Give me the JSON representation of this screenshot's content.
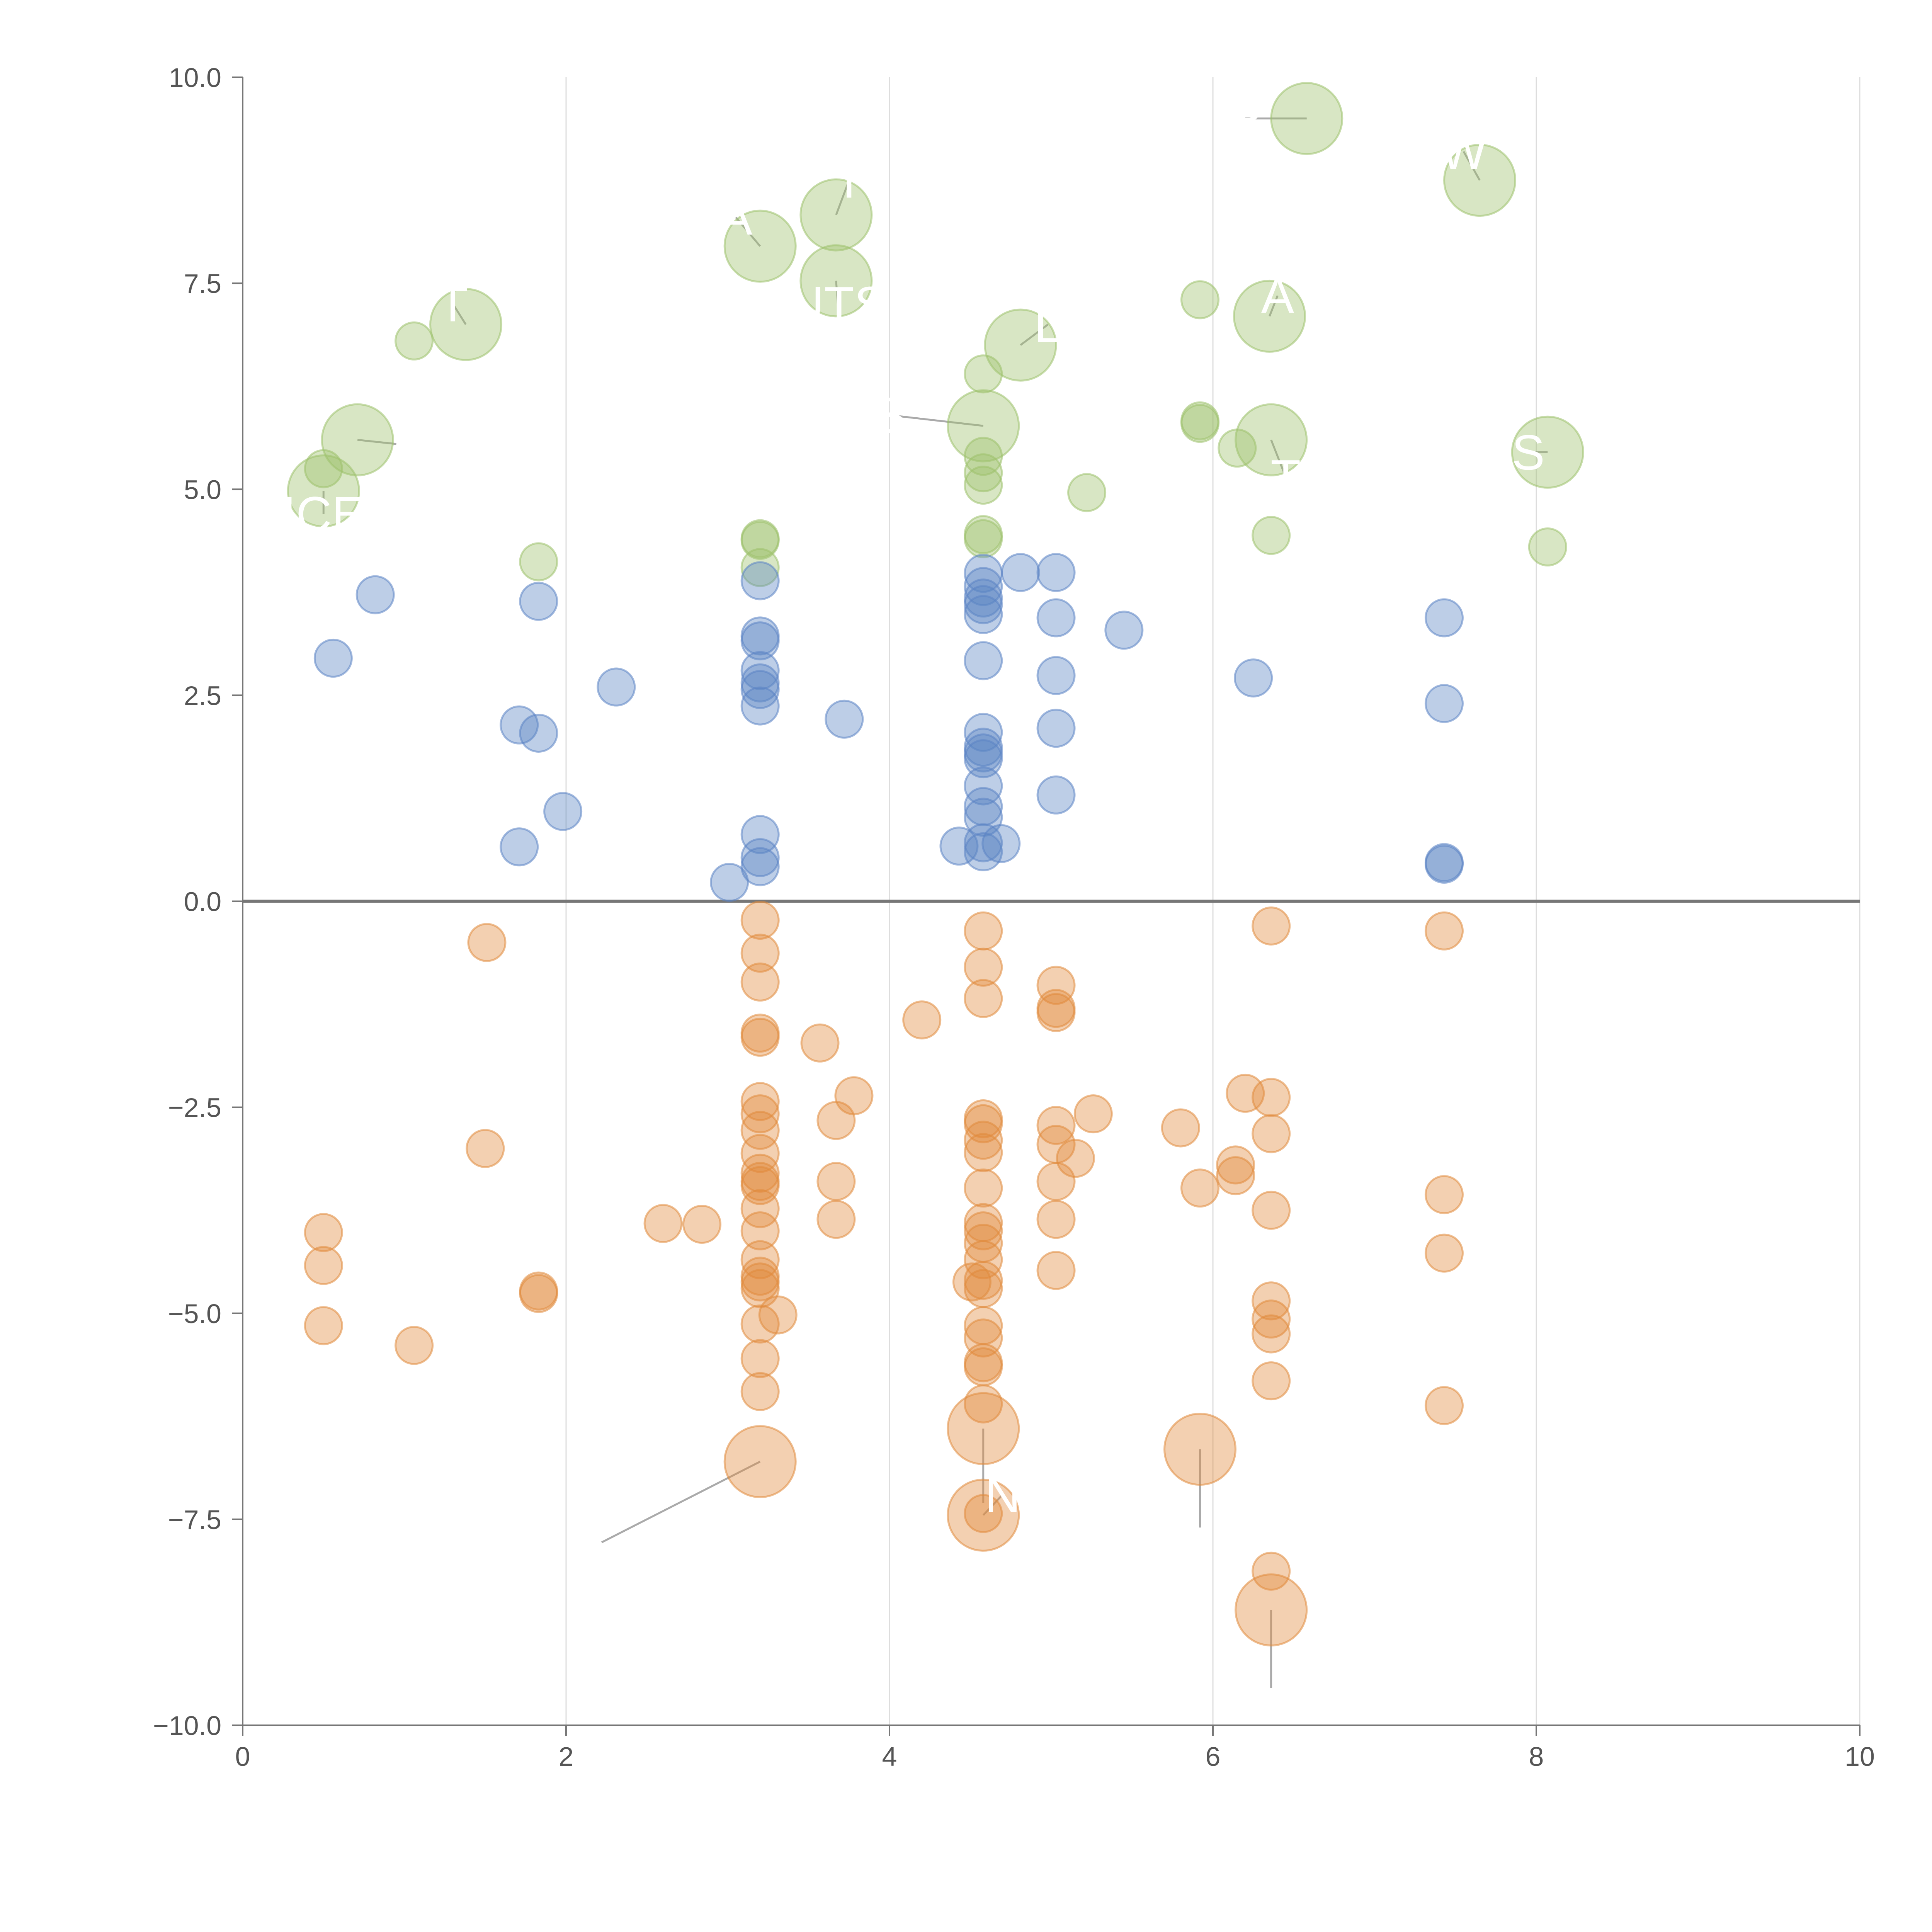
{
  "chart_data": {
    "type": "scatter",
    "title": "",
    "xlabel": "",
    "ylabel": "",
    "xlim": [
      0,
      10
    ],
    "ylim": [
      -10,
      10
    ],
    "x_ticks": [
      "0",
      "2",
      "4",
      "6",
      "8",
      "10"
    ],
    "y_ticks": [
      "10.0",
      "7.5",
      "5.0",
      "2.5",
      "0.0",
      "−2.5",
      "−5.0",
      "−7.5",
      "−10.0"
    ],
    "x_tick_values": [
      0,
      2,
      4,
      6,
      8,
      10
    ],
    "y_tick_values": [
      10,
      7.5,
      5,
      2.5,
      0,
      -2.5,
      -5,
      -7.5,
      -10
    ],
    "grid": "vertical",
    "zero_line": true,
    "legend": "none",
    "colors": {
      "green": "#9DC16B",
      "blue": "#5B84C4",
      "orange": "#E08A3C",
      "grid": "#dddddd",
      "axis": "#777777",
      "zero_line": "#777777",
      "leader": "#aaaaaa"
    },
    "series": [
      {
        "name": "green",
        "color": "#9DC16B",
        "points": [
          {
            "x": 0.5,
            "y": 5.25,
            "s": 1
          },
          {
            "x": 1.06,
            "y": 6.8,
            "s": 1
          },
          {
            "x": 1.83,
            "y": 4.12,
            "s": 1
          },
          {
            "x": 3.2,
            "y": 4.4,
            "s": 1
          },
          {
            "x": 3.2,
            "y": 4.05,
            "s": 1
          },
          {
            "x": 3.2,
            "y": 4.38,
            "s": 1
          },
          {
            "x": 4.58,
            "y": 6.4,
            "s": 1
          },
          {
            "x": 4.58,
            "y": 5.4,
            "s": 1
          },
          {
            "x": 4.58,
            "y": 5.2,
            "s": 1
          },
          {
            "x": 4.58,
            "y": 5.05,
            "s": 1
          },
          {
            "x": 4.58,
            "y": 4.45,
            "s": 1
          },
          {
            "x": 4.58,
            "y": 4.4,
            "s": 1
          },
          {
            "x": 5.22,
            "y": 4.96,
            "s": 1
          },
          {
            "x": 5.92,
            "y": 7.3,
            "s": 1
          },
          {
            "x": 5.92,
            "y": 5.8,
            "s": 1
          },
          {
            "x": 5.92,
            "y": 5.83,
            "s": 1
          },
          {
            "x": 6.15,
            "y": 5.5,
            "s": 1
          },
          {
            "x": 6.36,
            "y": 4.44,
            "s": 1
          },
          {
            "x": 8.07,
            "y": 4.3,
            "s": 1
          },
          {
            "x": 0.5,
            "y": 4.98,
            "s": 2,
            "label": "ICE",
            "lx": 0.5,
            "ly": 4.7
          },
          {
            "x": 0.71,
            "y": 5.6,
            "s": 2,
            "label": "",
            "lx": 0.95,
            "ly": 5.55
          },
          {
            "x": 1.38,
            "y": 7.0,
            "s": 2,
            "label": "T",
            "lx": 1.3,
            "ly": 7.25
          },
          {
            "x": 3.2,
            "y": 7.95,
            "s": 2,
            "label": "A",
            "lx": 3.05,
            "ly": 8.3
          },
          {
            "x": 3.67,
            "y": 8.33,
            "s": 2,
            "label": "T",
            "lx": 3.75,
            "ly": 8.75
          },
          {
            "x": 3.67,
            "y": 7.53,
            "s": 2,
            "label": "UTS",
            "lx": 3.68,
            "ly": 7.25
          },
          {
            "x": 4.58,
            "y": 5.77,
            "s": 2,
            "label": "S",
            "lx": 4.0,
            "ly": 5.9
          },
          {
            "x": 4.81,
            "y": 6.75,
            "s": 2,
            "label": "L",
            "lx": 4.98,
            "ly": 7.0
          },
          {
            "x": 6.35,
            "y": 7.1,
            "s": 2,
            "label": "A",
            "lx": 6.4,
            "ly": 7.35
          },
          {
            "x": 6.36,
            "y": 5.6,
            "s": 2,
            "label": "T",
            "lx": 6.45,
            "ly": 5.15
          },
          {
            "x": 6.58,
            "y": 9.5,
            "s": 2,
            "label": "R",
            "lx": 6.2,
            "ly": 9.5
          },
          {
            "x": 7.65,
            "y": 8.75,
            "s": 2,
            "label": "W",
            "lx": 7.55,
            "ly": 9.1
          },
          {
            "x": 8.07,
            "y": 5.45,
            "s": 2,
            "label": "S",
            "lx": 7.95,
            "ly": 5.45
          }
        ]
      },
      {
        "name": "blue",
        "color": "#5B84C4",
        "points": [
          {
            "x": 0.56,
            "y": 2.95,
            "s": 1
          },
          {
            "x": 0.82,
            "y": 3.72,
            "s": 1
          },
          {
            "x": 1.71,
            "y": 2.14,
            "s": 1
          },
          {
            "x": 1.71,
            "y": 0.66,
            "s": 1
          },
          {
            "x": 1.83,
            "y": 3.64,
            "s": 1
          },
          {
            "x": 1.83,
            "y": 2.04,
            "s": 1
          },
          {
            "x": 1.98,
            "y": 1.09,
            "s": 1
          },
          {
            "x": 2.31,
            "y": 2.6,
            "s": 1
          },
          {
            "x": 3.01,
            "y": 0.23,
            "s": 1
          },
          {
            "x": 3.2,
            "y": 3.89,
            "s": 1
          },
          {
            "x": 3.2,
            "y": 3.22,
            "s": 1
          },
          {
            "x": 3.2,
            "y": 3.16,
            "s": 1
          },
          {
            "x": 3.2,
            "y": 2.8,
            "s": 1
          },
          {
            "x": 3.2,
            "y": 2.65,
            "s": 1
          },
          {
            "x": 3.2,
            "y": 2.57,
            "s": 1
          },
          {
            "x": 3.2,
            "y": 2.37,
            "s": 1
          },
          {
            "x": 3.2,
            "y": 0.81,
            "s": 1
          },
          {
            "x": 3.2,
            "y": 0.53,
            "s": 1
          },
          {
            "x": 3.2,
            "y": 0.42,
            "s": 1
          },
          {
            "x": 3.72,
            "y": 2.21,
            "s": 1
          },
          {
            "x": 4.43,
            "y": 0.67,
            "s": 1
          },
          {
            "x": 4.58,
            "y": 3.98,
            "s": 1
          },
          {
            "x": 4.58,
            "y": 3.82,
            "s": 1
          },
          {
            "x": 4.58,
            "y": 3.68,
            "s": 1
          },
          {
            "x": 4.58,
            "y": 3.6,
            "s": 1
          },
          {
            "x": 4.58,
            "y": 3.48,
            "s": 1
          },
          {
            "x": 4.58,
            "y": 2.92,
            "s": 1
          },
          {
            "x": 4.58,
            "y": 2.05,
            "s": 1
          },
          {
            "x": 4.58,
            "y": 1.87,
            "s": 1
          },
          {
            "x": 4.58,
            "y": 1.8,
            "s": 1
          },
          {
            "x": 4.58,
            "y": 1.73,
            "s": 1
          },
          {
            "x": 4.58,
            "y": 1.4,
            "s": 1
          },
          {
            "x": 4.58,
            "y": 1.15,
            "s": 1
          },
          {
            "x": 4.58,
            "y": 1.02,
            "s": 1
          },
          {
            "x": 4.58,
            "y": 0.71,
            "s": 1
          },
          {
            "x": 4.58,
            "y": 0.6,
            "s": 1
          },
          {
            "x": 4.69,
            "y": 0.7,
            "s": 1
          },
          {
            "x": 4.81,
            "y": 3.99,
            "s": 1
          },
          {
            "x": 5.03,
            "y": 3.99,
            "s": 1
          },
          {
            "x": 5.03,
            "y": 3.44,
            "s": 1
          },
          {
            "x": 5.03,
            "y": 2.74,
            "s": 1
          },
          {
            "x": 5.03,
            "y": 2.1,
            "s": 1
          },
          {
            "x": 5.03,
            "y": 1.29,
            "s": 1
          },
          {
            "x": 5.45,
            "y": 3.29,
            "s": 1
          },
          {
            "x": 6.25,
            "y": 2.71,
            "s": 1
          },
          {
            "x": 7.43,
            "y": 3.44,
            "s": 1
          },
          {
            "x": 7.43,
            "y": 2.4,
            "s": 1
          },
          {
            "x": 7.43,
            "y": 0.47,
            "s": 1
          },
          {
            "x": 7.43,
            "y": 0.45,
            "s": 1
          }
        ]
      },
      {
        "name": "orange",
        "color": "#E08A3C",
        "points": [
          {
            "x": 0.5,
            "y": -4.02,
            "s": 1
          },
          {
            "x": 0.5,
            "y": -4.42,
            "s": 1
          },
          {
            "x": 0.5,
            "y": -5.15,
            "s": 1
          },
          {
            "x": 1.06,
            "y": -5.39,
            "s": 1
          },
          {
            "x": 1.51,
            "y": -0.5,
            "s": 1
          },
          {
            "x": 1.5,
            "y": -3.0,
            "s": 1
          },
          {
            "x": 1.83,
            "y": -4.73,
            "s": 1
          },
          {
            "x": 1.83,
            "y": -4.76,
            "s": 1
          },
          {
            "x": 2.6,
            "y": -3.91,
            "s": 1
          },
          {
            "x": 2.84,
            "y": -3.92,
            "s": 1
          },
          {
            "x": 3.2,
            "y": -0.23,
            "s": 1
          },
          {
            "x": 3.2,
            "y": -0.63,
            "s": 1
          },
          {
            "x": 3.2,
            "y": -0.98,
            "s": 1
          },
          {
            "x": 3.2,
            "y": -1.6,
            "s": 1
          },
          {
            "x": 3.2,
            "y": -1.65,
            "s": 1
          },
          {
            "x": 3.2,
            "y": -2.43,
            "s": 1
          },
          {
            "x": 3.2,
            "y": -2.58,
            "s": 1
          },
          {
            "x": 3.2,
            "y": -2.78,
            "s": 1
          },
          {
            "x": 3.2,
            "y": -3.06,
            "s": 1
          },
          {
            "x": 3.2,
            "y": -3.3,
            "s": 1
          },
          {
            "x": 3.2,
            "y": -3.4,
            "s": 1
          },
          {
            "x": 3.2,
            "y": -3.45,
            "s": 1
          },
          {
            "x": 3.2,
            "y": -3.73,
            "s": 1
          },
          {
            "x": 3.2,
            "y": -4.0,
            "s": 1
          },
          {
            "x": 3.2,
            "y": -4.35,
            "s": 1
          },
          {
            "x": 3.2,
            "y": -4.55,
            "s": 1
          },
          {
            "x": 3.2,
            "y": -4.62,
            "s": 1
          },
          {
            "x": 3.2,
            "y": -4.7,
            "s": 1
          },
          {
            "x": 3.2,
            "y": -5.13,
            "s": 1
          },
          {
            "x": 3.2,
            "y": -5.55,
            "s": 1
          },
          {
            "x": 3.2,
            "y": -5.95,
            "s": 1
          },
          {
            "x": 3.31,
            "y": -5.02,
            "s": 1
          },
          {
            "x": 3.57,
            "y": -1.72,
            "s": 1
          },
          {
            "x": 3.67,
            "y": -2.66,
            "s": 1
          },
          {
            "x": 3.67,
            "y": -3.4,
            "s": 1
          },
          {
            "x": 3.67,
            "y": -3.86,
            "s": 1
          },
          {
            "x": 3.78,
            "y": -2.36,
            "s": 1
          },
          {
            "x": 4.2,
            "y": -1.44,
            "s": 1
          },
          {
            "x": 4.58,
            "y": -0.36,
            "s": 1
          },
          {
            "x": 4.58,
            "y": -0.8,
            "s": 1
          },
          {
            "x": 4.58,
            "y": -1.18,
            "s": 1
          },
          {
            "x": 4.58,
            "y": -2.64,
            "s": 1
          },
          {
            "x": 4.58,
            "y": -2.7,
            "s": 1
          },
          {
            "x": 4.58,
            "y": -2.9,
            "s": 1
          },
          {
            "x": 4.58,
            "y": -3.05,
            "s": 1
          },
          {
            "x": 4.58,
            "y": -3.48,
            "s": 1
          },
          {
            "x": 4.58,
            "y": -3.9,
            "s": 1
          },
          {
            "x": 4.58,
            "y": -4.0,
            "s": 1
          },
          {
            "x": 4.58,
            "y": -4.15,
            "s": 1
          },
          {
            "x": 4.58,
            "y": -4.35,
            "s": 1
          },
          {
            "x": 4.58,
            "y": -4.6,
            "s": 1
          },
          {
            "x": 4.58,
            "y": -4.7,
            "s": 1
          },
          {
            "x": 4.51,
            "y": -4.62,
            "s": 1
          },
          {
            "x": 4.58,
            "y": -5.15,
            "s": 1
          },
          {
            "x": 4.58,
            "y": -5.3,
            "s": 1
          },
          {
            "x": 4.58,
            "y": -5.6,
            "s": 1
          },
          {
            "x": 4.58,
            "y": -5.65,
            "s": 1
          },
          {
            "x": 4.58,
            "y": -6.1,
            "s": 1
          },
          {
            "x": 4.58,
            "y": -7.43,
            "s": 1
          },
          {
            "x": 5.03,
            "y": -1.02,
            "s": 1
          },
          {
            "x": 5.03,
            "y": -1.3,
            "s": 1
          },
          {
            "x": 5.03,
            "y": -1.35,
            "s": 1
          },
          {
            "x": 5.03,
            "y": -2.72,
            "s": 1
          },
          {
            "x": 5.03,
            "y": -2.95,
            "s": 1
          },
          {
            "x": 5.03,
            "y": -3.4,
            "s": 1
          },
          {
            "x": 5.03,
            "y": -3.86,
            "s": 1
          },
          {
            "x": 5.03,
            "y": -4.48,
            "s": 1
          },
          {
            "x": 5.15,
            "y": -3.12,
            "s": 1
          },
          {
            "x": 5.26,
            "y": -2.58,
            "s": 1
          },
          {
            "x": 5.8,
            "y": -2.75,
            "s": 1
          },
          {
            "x": 5.92,
            "y": -3.48,
            "s": 1
          },
          {
            "x": 6.14,
            "y": -3.2,
            "s": 1
          },
          {
            "x": 6.14,
            "y": -3.33,
            "s": 1
          },
          {
            "x": 6.2,
            "y": -2.33,
            "s": 1
          },
          {
            "x": 6.36,
            "y": -0.3,
            "s": 1
          },
          {
            "x": 6.36,
            "y": -2.38,
            "s": 1
          },
          {
            "x": 6.36,
            "y": -2.82,
            "s": 1
          },
          {
            "x": 6.36,
            "y": -3.75,
            "s": 1
          },
          {
            "x": 6.36,
            "y": -4.85,
            "s": 1
          },
          {
            "x": 6.36,
            "y": -5.07,
            "s": 1
          },
          {
            "x": 6.36,
            "y": -5.25,
            "s": 1
          },
          {
            "x": 6.36,
            "y": -5.82,
            "s": 1
          },
          {
            "x": 6.36,
            "y": -8.13,
            "s": 1
          },
          {
            "x": 7.43,
            "y": -0.36,
            "s": 1
          },
          {
            "x": 7.43,
            "y": -3.56,
            "s": 1
          },
          {
            "x": 7.43,
            "y": -4.27,
            "s": 1
          },
          {
            "x": 7.43,
            "y": -6.12,
            "s": 1
          },
          {
            "x": 3.2,
            "y": -6.8,
            "s": 2,
            "label": "",
            "lx": 2.22,
            "ly": -7.78
          },
          {
            "x": 4.58,
            "y": -6.4,
            "s": 2,
            "label": "",
            "lx": 4.58,
            "ly": -7.3
          },
          {
            "x": 4.58,
            "y": -7.45,
            "s": 2,
            "label": "N",
            "lx": 4.7,
            "ly": -7.2
          },
          {
            "x": 5.92,
            "y": -6.65,
            "s": 2,
            "label": "",
            "lx": 5.92,
            "ly": -7.6
          },
          {
            "x": 6.36,
            "y": -8.6,
            "s": 2,
            "label": "",
            "lx": 6.36,
            "ly": -9.55
          }
        ]
      }
    ]
  }
}
